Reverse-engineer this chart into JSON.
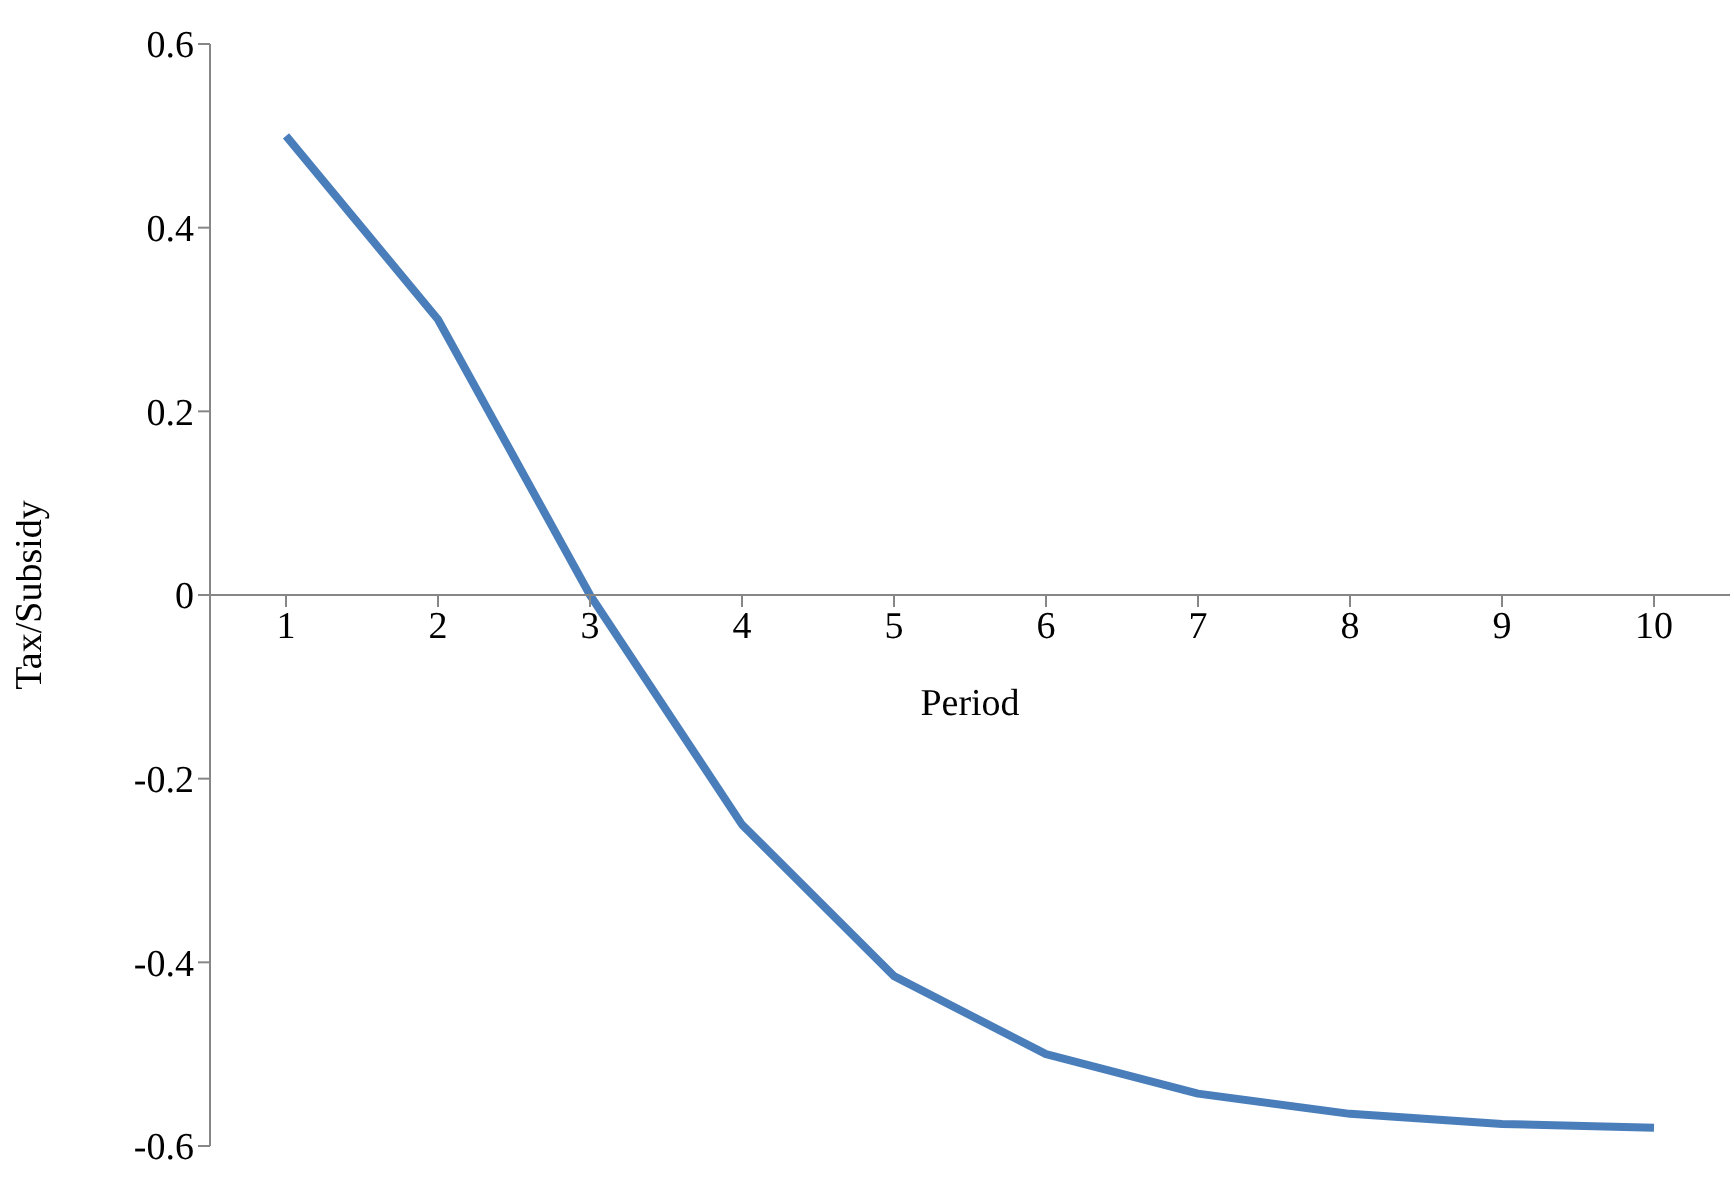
{
  "chart_data": {
    "type": "line",
    "xlabel": "Period",
    "ylabel": "Tax/Subsidy",
    "categories": [
      "1",
      "2",
      "3",
      "4",
      "5",
      "6",
      "7",
      "8",
      "9",
      "10"
    ],
    "values": [
      0.5,
      0.3,
      0,
      -0.25,
      -0.415,
      -0.5,
      -0.543,
      -0.565,
      -0.576,
      -0.58
    ],
    "color": "#4a7ebb",
    "ylim": [
      -0.6,
      0.6
    ],
    "yticks": [
      -0.6,
      -0.4,
      -0.2,
      0,
      0.2,
      0.4,
      0.6
    ]
  }
}
